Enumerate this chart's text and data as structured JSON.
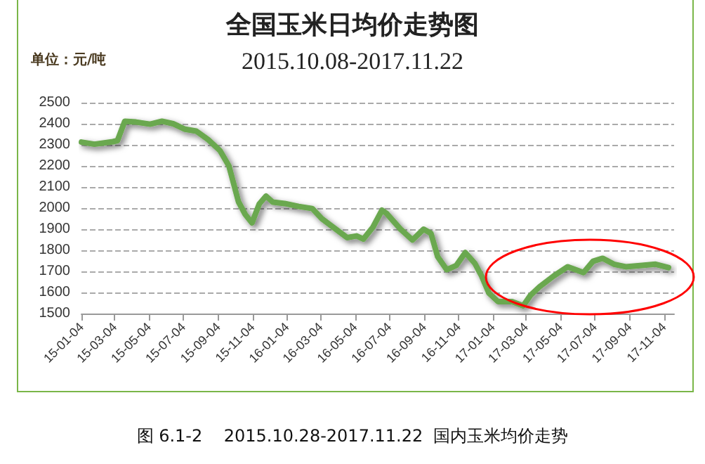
{
  "chart_data": {
    "type": "line",
    "title": "全国玉米日均价走势图",
    "subtitle": "2015.10.08-2017.11.22",
    "ylabel": "单位：元/吨",
    "annotations": [
      "图 6.1-2    2015.10.28-2017.11.22  国内玉米均价走势"
    ],
    "x": [
      "2015-01-04",
      "2015-01-27",
      "2015-03-01",
      "2015-03-09",
      "2015-03-22",
      "2015-04-11",
      "2015-05-06",
      "2015-05-27",
      "2015-06-16",
      "2015-07-07",
      "2015-07-27",
      "2015-08-17",
      "2015-09-07",
      "2015-09-23",
      "2015-10-10",
      "2015-10-22",
      "2015-11-03",
      "2015-11-16",
      "2015-11-28",
      "2015-12-10",
      "2015-12-31",
      "2016-01-25",
      "2016-02-18",
      "2016-03-06",
      "2016-03-31",
      "2016-04-20",
      "2016-05-07",
      "2016-05-19",
      "2016-06-05",
      "2016-06-21",
      "2016-06-29",
      "2016-07-24",
      "2016-08-14",
      "2016-09-03",
      "2016-09-16",
      "2016-09-28",
      "2016-10-14",
      "2016-10-31",
      "2016-11-16",
      "2016-12-03",
      "2016-12-15",
      "2016-12-28",
      "2017-01-13",
      "2017-02-07",
      "2017-02-27",
      "2017-03-12",
      "2017-03-28",
      "2017-04-22",
      "2017-05-17",
      "2017-05-29",
      "2017-06-14",
      "2017-07-01",
      "2017-07-18",
      "2017-08-07",
      "2017-08-28",
      "2017-09-26",
      "2017-10-20",
      "2017-11-12"
    ],
    "series": [
      {
        "color": "#6aa84f",
        "values": [
          2313,
          2303,
          2315,
          2320,
          2412,
          2408,
          2398,
          2412,
          2400,
          2374,
          2365,
          2325,
          2273,
          2200,
          2030,
          1970,
          1930,
          2020,
          2057,
          2028,
          2022,
          2008,
          1998,
          1950,
          1900,
          1860,
          1868,
          1853,
          1910,
          1990,
          1975,
          1900,
          1849,
          1900,
          1880,
          1769,
          1708,
          1728,
          1789,
          1738,
          1678,
          1597,
          1557,
          1557,
          1537,
          1587,
          1627,
          1678,
          1722,
          1710,
          1694,
          1748,
          1762,
          1734,
          1722,
          1728,
          1734,
          1718
        ]
      }
    ],
    "xlim": [
      "2015-01-04",
      "2017-11-22"
    ],
    "xticks": [
      {
        "value": "2015-01-04",
        "label": "15-01-04"
      },
      {
        "value": "2015-03-04",
        "label": "15-03-04"
      },
      {
        "value": "2015-05-04",
        "label": "15-05-04"
      },
      {
        "value": "2015-07-04",
        "label": "15-07-04"
      },
      {
        "value": "2015-09-04",
        "label": "15-09-04"
      },
      {
        "value": "2015-11-04",
        "label": "15-11-04"
      },
      {
        "value": "2016-01-04",
        "label": "16-01-04"
      },
      {
        "value": "2016-03-04",
        "label": "16-03-04"
      },
      {
        "value": "2016-05-04",
        "label": "16-05-04"
      },
      {
        "value": "2016-07-04",
        "label": "16-07-04"
      },
      {
        "value": "2016-09-04",
        "label": "16-09-04"
      },
      {
        "value": "2016-11-04",
        "label": "16-11-04"
      },
      {
        "value": "2017-01-04",
        "label": "17-01-04"
      },
      {
        "value": "2017-03-04",
        "label": "17-03-04"
      },
      {
        "value": "2017-05-04",
        "label": "17-05-04"
      },
      {
        "value": "2017-07-04",
        "label": "17-07-04"
      },
      {
        "value": "2017-09-04",
        "label": "17-09-04"
      },
      {
        "value": "2017-11-04",
        "label": "17-11-04"
      }
    ],
    "ylim": [
      1500,
      2500
    ],
    "yticks": [
      1500,
      1600,
      1700,
      1800,
      1900,
      2000,
      2100,
      2200,
      2300,
      2400,
      2500
    ],
    "grid": "y",
    "marker": "none",
    "line_style": "solid"
  }
}
